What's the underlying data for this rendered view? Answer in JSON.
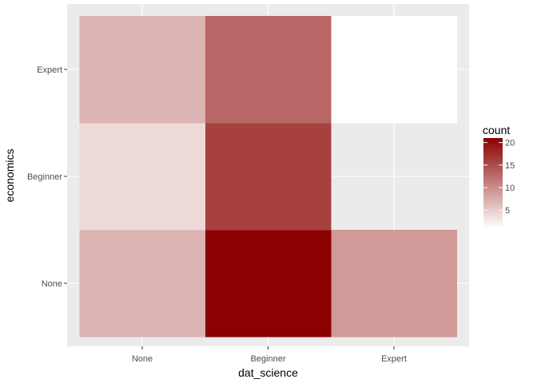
{
  "chart_data": {
    "type": "heatmap",
    "xlabel": "dat_science",
    "ylabel": "economics",
    "x_categories": [
      "None",
      "Beginner",
      "Expert"
    ],
    "y_categories": [
      "None",
      "Beginner",
      "Expert"
    ],
    "cells": [
      {
        "x": "None",
        "y": "None",
        "count": 7
      },
      {
        "x": "Beginner",
        "y": "None",
        "count": 21
      },
      {
        "x": "Expert",
        "y": "None",
        "count": 9
      },
      {
        "x": "None",
        "y": "Beginner",
        "count": 4
      },
      {
        "x": "Beginner",
        "y": "Beginner",
        "count": 16
      },
      {
        "x": "None",
        "y": "Expert",
        "count": 7
      },
      {
        "x": "Beginner",
        "y": "Expert",
        "count": 13
      },
      {
        "x": "Expert",
        "y": "Expert",
        "count": 1
      }
    ],
    "legend": {
      "title": "count",
      "breaks": [
        5,
        10,
        15,
        20
      ],
      "break_labels": [
        "5",
        "10",
        "15",
        "20"
      ],
      "range": [
        1,
        21
      ],
      "low_color": "#ffffff",
      "high_color": "#8b0000",
      "placement": "right"
    },
    "panel_background": "#ebebeb",
    "grid_color": "#ffffff",
    "grid": true
  }
}
